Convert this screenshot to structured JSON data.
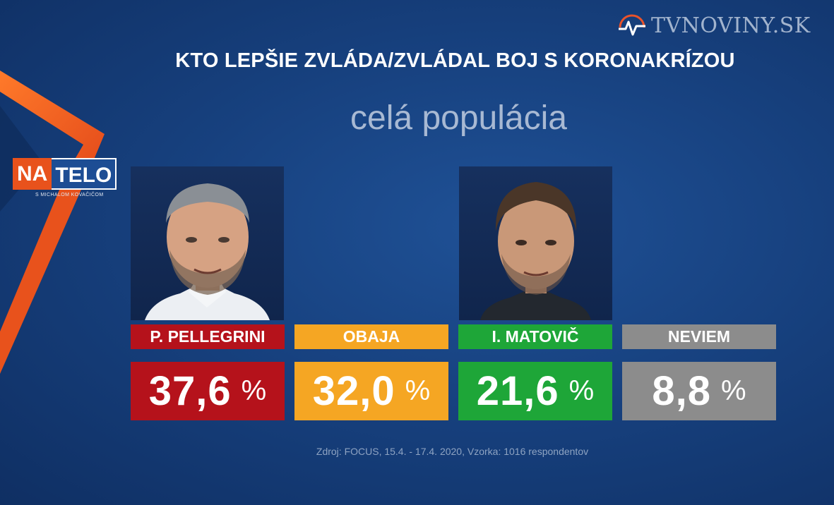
{
  "channel_logo": "TVNOVINY.SK",
  "show_logo": {
    "part_a": "NA",
    "part_b": "TELO",
    "subtitle": "S MICHALOM KOVAČIČOM"
  },
  "headline": "KTO LEPŠIE ZVLÁDA/ZVLÁDAL BOJ S KORONAKRÍZOU",
  "subheadline": "celá populácia",
  "chart_data": {
    "type": "bar",
    "title": "KTO LEPŠIE ZVLÁDA/ZVLÁDAL BOJ S KORONAKRÍZOU",
    "subtitle": "celá populácia",
    "categories": [
      "P. PELLEGRINI",
      "OBAJA",
      "I. MATOVIČ",
      "NEVIEM"
    ],
    "values": [
      37.6,
      32.0,
      21.6,
      8.8
    ],
    "value_labels": [
      "37,6",
      "32,0",
      "21,6",
      "8,8"
    ],
    "unit": "%",
    "colors": [
      "#b5121b",
      "#f5a623",
      "#1ea638",
      "#8c8c8c"
    ],
    "source": "Zdroj: FOCUS, 15.4. - 17.4. 2020, Vzorka: 1016 respondentov"
  }
}
